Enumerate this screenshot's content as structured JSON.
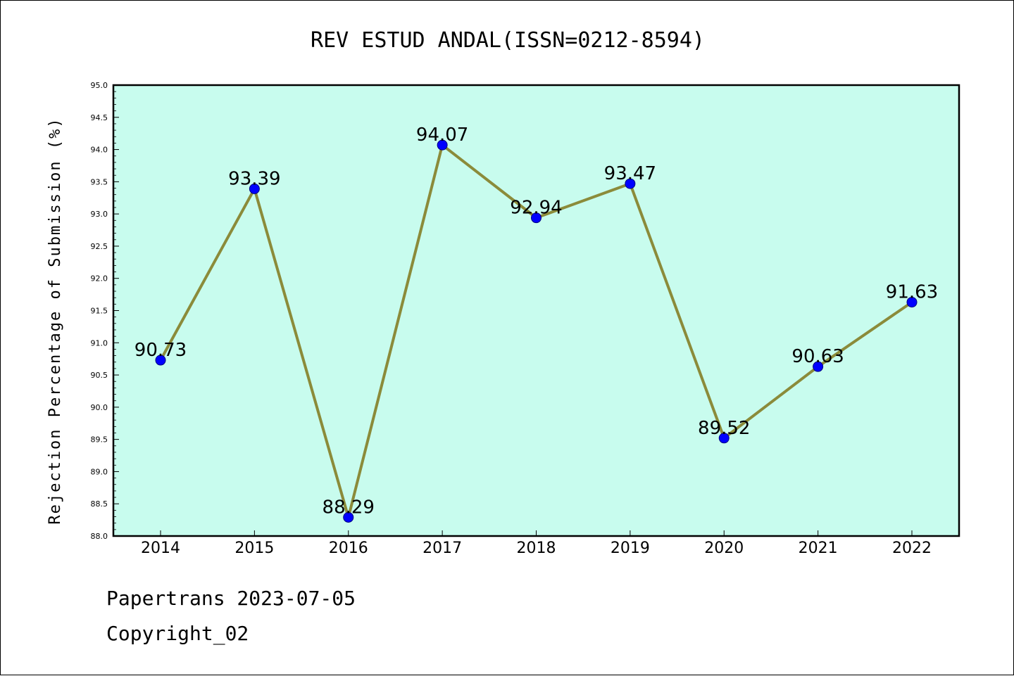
{
  "chart_data": {
    "type": "line",
    "title": "REV ESTUD ANDAL(ISSN=0212-8594)",
    "xlabel": "",
    "ylabel": "Rejection Percentage of Submission (%)",
    "categories": [
      "2014",
      "2015",
      "2016",
      "2017",
      "2018",
      "2019",
      "2020",
      "2021",
      "2022"
    ],
    "series": [
      {
        "values": [
          90.73,
          93.39,
          88.29,
          94.07,
          92.94,
          93.47,
          89.52,
          90.63,
          91.63
        ],
        "value_labels": [
          "90.73",
          "93.39",
          "88.29",
          "94.07",
          "92.94",
          "93.47",
          "89.52",
          "90.63",
          "91.63"
        ]
      }
    ],
    "ylim": [
      88.0,
      95.0
    ],
    "yticks": [
      "88.0",
      "88.5",
      "89.0",
      "89.5",
      "90.0",
      "90.5",
      "91.0",
      "91.5",
      "92.0",
      "92.5",
      "93.0",
      "93.5",
      "94.0",
      "94.5",
      "95.0"
    ],
    "grid": false,
    "colors": {
      "plot_background": "#c8fcee",
      "line": "#8b8b3a",
      "marker_fill": "#0000ff",
      "marker_edge": "#000080",
      "axes": "#000000"
    }
  },
  "footer": {
    "line1": "Papertrans 2023-07-05",
    "line2": "Copyright_02"
  }
}
